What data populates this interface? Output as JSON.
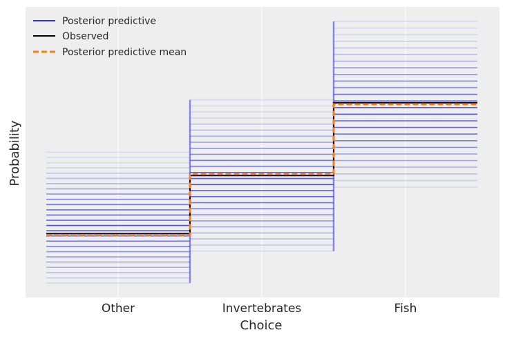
{
  "chart_data": {
    "type": "line",
    "title": "",
    "xlabel": "Choice",
    "ylabel": "Probability",
    "categories": [
      "Other",
      "Invertebrates",
      "Fish"
    ],
    "grid": true,
    "legend_position": "top-left",
    "ylim": [
      0,
      1
    ],
    "series": [
      {
        "name": "Posterior predictive",
        "style": "step-draws",
        "color": "#2a2eec",
        "ranges": [
          {
            "category": "Other",
            "min": 0.05,
            "max": 0.5
          },
          {
            "category": "Invertebrates",
            "min": 0.16,
            "max": 0.68
          },
          {
            "category": "Fish",
            "min": 0.38,
            "max": 0.95
          }
        ]
      },
      {
        "name": "Observed",
        "style": "step",
        "color": "#000000",
        "values": [
          0.22,
          0.42,
          0.67
        ]
      },
      {
        "name": "Posterior predictive mean",
        "style": "step-dashed",
        "color": "#fa7c17",
        "values": [
          0.215,
          0.425,
          0.665
        ]
      }
    ]
  }
}
